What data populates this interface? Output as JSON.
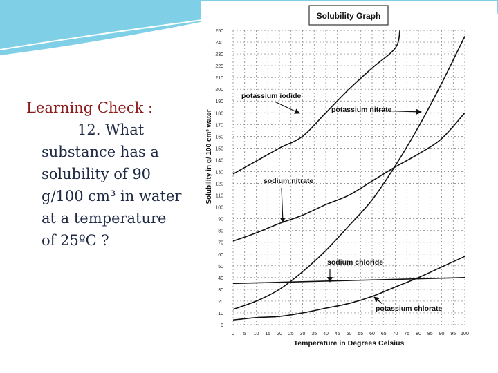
{
  "slide": {
    "heading": "Learning Check :",
    "question_number": "12.",
    "question_lines": [
      "What",
      "substance has a",
      "solubility of 90",
      "g/100 cm³ in water",
      "at a temperature",
      "of 25ºC ?"
    ]
  },
  "colors": {
    "heading": "#8a1c1c",
    "body_text": "#1f2a44",
    "banner": "#7fd0e6",
    "curve": "#111111"
  },
  "chart_data": {
    "type": "line",
    "title": "Solubility Graph",
    "xlabel": "Temperature in Degrees Celsius",
    "ylabel": "Solubility in g/ 100 cm³ water",
    "xlim": [
      0,
      100
    ],
    "ylim": [
      0,
      250
    ],
    "x_ticks": [
      0,
      5,
      10,
      15,
      20,
      25,
      30,
      35,
      40,
      45,
      50,
      55,
      60,
      65,
      70,
      75,
      80,
      85,
      90,
      95,
      100
    ],
    "y_ticks": [
      0,
      10,
      20,
      30,
      40,
      50,
      60,
      70,
      80,
      90,
      100,
      110,
      120,
      130,
      140,
      150,
      160,
      170,
      180,
      190,
      200,
      210,
      220,
      230,
      240,
      250
    ],
    "grid": true,
    "series": [
      {
        "name": "potassium iodide",
        "x": [
          0,
          10,
          20,
          30,
          40,
          50,
          60,
          70,
          72
        ],
        "y": [
          128,
          139,
          150,
          160,
          180,
          200,
          218,
          235,
          250
        ]
      },
      {
        "name": "potassium nitrate",
        "x": [
          0,
          10,
          20,
          30,
          40,
          50,
          60,
          70,
          80,
          90,
          100
        ],
        "y": [
          13,
          20,
          30,
          45,
          63,
          84,
          106,
          135,
          168,
          205,
          245
        ]
      },
      {
        "name": "sodium nitrate",
        "x": [
          0,
          10,
          20,
          30,
          40,
          50,
          60,
          70,
          80,
          90,
          100
        ],
        "y": [
          71,
          78,
          86,
          93,
          102,
          110,
          122,
          134,
          145,
          158,
          180
        ]
      },
      {
        "name": "sodium chloride",
        "x": [
          0,
          20,
          40,
          60,
          80,
          100
        ],
        "y": [
          35,
          36,
          37,
          38,
          39,
          40
        ]
      },
      {
        "name": "potassium chlorate",
        "x": [
          0,
          10,
          20,
          30,
          40,
          50,
          60,
          70,
          80,
          90,
          100
        ],
        "y": [
          4,
          6,
          7,
          10,
          14,
          18,
          24,
          32,
          40,
          49,
          58
        ]
      }
    ],
    "annotations": [
      "potassium iodide",
      "potassium nitrate",
      "sodium nitrate",
      "sodium chloride",
      "potassium chlorate"
    ]
  }
}
